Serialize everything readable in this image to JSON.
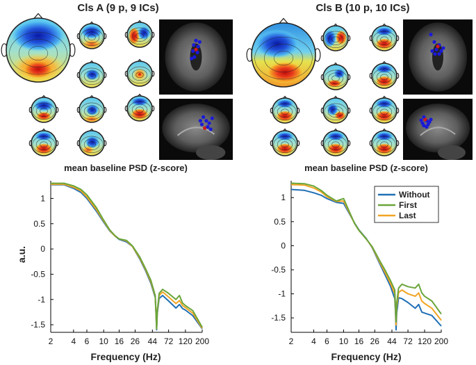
{
  "colors": {
    "without": "#1f6fb5",
    "first": "#6aa53a",
    "last": "#f0a424",
    "deep_blue": "#1426b8",
    "light_blue": "#41a9ee",
    "cyan": "#66d4f0",
    "yellow": "#f6e34a",
    "orange": "#f59a24",
    "red": "#d81f1f"
  },
  "clusters": [
    {
      "title": "Cls A (9 p, 9 ICs)",
      "large_map": "frontal-blue-posterior-red",
      "small_maps": [
        "blue-frontal",
        "left-red-right-blue",
        "blue-center",
        "orange-center",
        "blue-front-red-back",
        "blue-center-ring",
        "red-back",
        "red-back",
        "blue-ring-red-bottom"
      ],
      "dipole_count": 9
    },
    {
      "title": "Cls B (10 p, 10 ICs)",
      "large_map": "frontal-cyan-posterior-red",
      "small_maps": [
        "blue-left-red-right",
        "red-back",
        "blue-right",
        "red-back",
        "red-back",
        "blue-left",
        "red-back",
        "red-back",
        "red-back",
        "red-back"
      ],
      "dipole_count": 10
    }
  ],
  "chart_data": [
    {
      "type": "line",
      "title": "mean baseline PSD (z-score)",
      "xlabel": "Frequency (Hz)",
      "ylabel": "a.u.",
      "xscale": "log",
      "xlim": [
        2,
        200
      ],
      "ylim": [
        -1.65,
        1.35
      ],
      "xticks": [
        2,
        4,
        6,
        10,
        16,
        26,
        44,
        72,
        120,
        200
      ],
      "yticks": [
        1,
        0.5,
        0,
        -0.5,
        -1,
        -1.5
      ],
      "x": [
        2,
        3,
        4,
        5,
        6,
        8,
        10,
        12,
        14,
        16,
        20,
        24,
        30,
        36,
        42,
        48,
        49,
        50,
        51,
        54,
        60,
        72,
        90,
        100,
        110,
        120,
        150,
        200
      ],
      "series": [
        {
          "name": "Without",
          "values": [
            1.27,
            1.27,
            1.2,
            1.12,
            1.0,
            0.75,
            0.53,
            0.36,
            0.26,
            0.19,
            0.14,
            0.05,
            -0.2,
            -0.44,
            -0.68,
            -0.96,
            -1.25,
            -1.6,
            -1.28,
            -0.98,
            -0.92,
            -1.03,
            -1.17,
            -1.1,
            -1.18,
            -1.21,
            -1.32,
            -1.58
          ]
        },
        {
          "name": "First",
          "values": [
            1.3,
            1.3,
            1.25,
            1.18,
            1.07,
            0.82,
            0.57,
            0.38,
            0.27,
            0.2,
            0.17,
            0.06,
            -0.16,
            -0.4,
            -0.62,
            -0.92,
            -1.22,
            -1.58,
            -1.25,
            -0.88,
            -0.8,
            -0.88,
            -1.0,
            -0.92,
            -1.07,
            -1.12,
            -1.22,
            -1.55
          ]
        },
        {
          "name": "Last",
          "values": [
            1.28,
            1.28,
            1.22,
            1.15,
            1.03,
            0.78,
            0.55,
            0.37,
            0.26,
            0.2,
            0.16,
            0.05,
            -0.18,
            -0.42,
            -0.65,
            -0.94,
            -1.24,
            -1.58,
            -1.26,
            -0.92,
            -0.85,
            -0.95,
            -1.08,
            -1.02,
            -1.12,
            -1.16,
            -1.27,
            -1.57
          ]
        }
      ]
    },
    {
      "type": "line",
      "title": "mean baseline PSD (z-score)",
      "xlabel": "Frequency (Hz)",
      "ylabel": "",
      "xscale": "log",
      "xlim": [
        2,
        200
      ],
      "ylim": [
        -1.8,
        1.35
      ],
      "xticks": [
        2,
        4,
        6,
        10,
        16,
        26,
        44,
        72,
        120,
        200
      ],
      "yticks": [
        1,
        0.5,
        0,
        -0.5,
        -1,
        -1.5
      ],
      "legend": "top-right",
      "x": [
        2,
        3,
        4,
        5,
        6,
        8,
        10,
        12,
        14,
        16,
        20,
        24,
        30,
        36,
        42,
        48,
        49,
        50,
        51,
        54,
        60,
        72,
        90,
        100,
        110,
        120,
        150,
        200
      ],
      "series": [
        {
          "name": "Without",
          "values": [
            1.17,
            1.15,
            1.1,
            1.05,
            0.98,
            0.9,
            0.88,
            0.66,
            0.47,
            0.33,
            0.15,
            -0.04,
            -0.36,
            -0.62,
            -0.84,
            -1.1,
            -1.35,
            -1.75,
            -1.4,
            -1.08,
            -1.1,
            -1.18,
            -1.3,
            -1.22,
            -1.38,
            -1.4,
            -1.45,
            -1.67
          ]
        },
        {
          "name": "First",
          "values": [
            1.3,
            1.29,
            1.24,
            1.15,
            1.05,
            0.93,
            0.98,
            0.7,
            0.46,
            0.32,
            0.14,
            -0.02,
            -0.3,
            -0.52,
            -0.72,
            -0.92,
            -1.22,
            -1.58,
            -1.2,
            -0.88,
            -0.8,
            -0.85,
            -0.88,
            -0.8,
            -0.98,
            -1.05,
            -1.15,
            -1.42
          ]
        },
        {
          "name": "Last",
          "values": [
            1.27,
            1.26,
            1.2,
            1.12,
            1.02,
            0.92,
            0.93,
            0.68,
            0.46,
            0.32,
            0.14,
            -0.03,
            -0.33,
            -0.57,
            -0.78,
            -1.0,
            -1.28,
            -1.65,
            -1.28,
            -0.97,
            -0.92,
            -1.0,
            -1.05,
            -0.98,
            -1.15,
            -1.2,
            -1.3,
            -1.55
          ]
        }
      ]
    }
  ]
}
